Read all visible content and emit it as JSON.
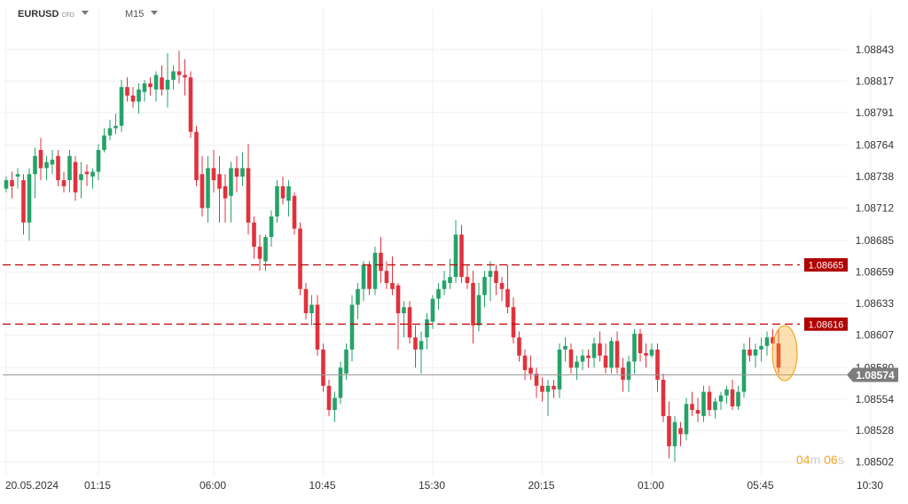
{
  "header": {
    "symbol": "EURUSD",
    "instrument_type": "CFD",
    "timeframe": "M15",
    "symbol_dropdown_icon": "chevron-down-icon",
    "timeframe_dropdown_icon": "chevron-down-icon"
  },
  "countdown": {
    "minutes": "04",
    "minutes_unit": "m",
    "seconds": "06",
    "seconds_unit": "s"
  },
  "colors": {
    "bull": "#26a269",
    "bear": "#e0323c",
    "grid": "#f0f0f0",
    "axis_text": "#333333",
    "level_line": "#c00000",
    "level_label_bg": "#b00000",
    "price_line": "#9a9a9a",
    "price_label_bg": "#7d7d7d",
    "highlight": "#f5a623"
  },
  "chart_data": {
    "type": "candlestick",
    "symbol": "EURUSD",
    "timeframe": "M15",
    "ylim": [
      1.0849,
      1.08862
    ],
    "y_ticks": [
      "1.08843",
      "1.08817",
      "1.08791",
      "1.08764",
      "1.08738",
      "1.08712",
      "1.08685",
      "1.08659",
      "1.08633",
      "1.08607",
      "1.08580",
      "1.08554",
      "1.08528",
      "1.08502"
    ],
    "x_ticks": [
      "20.05.2024",
      "01:15",
      "06:00",
      "10:45",
      "15:30",
      "20:15",
      "01:00",
      "05:45",
      "10:30"
    ],
    "x_tick_index": [
      0,
      16,
      36,
      55,
      74,
      93,
      112,
      131,
      150
    ],
    "x_slot_count": 155,
    "horizontal_levels": [
      {
        "price": 1.08665,
        "label": "1.08665"
      },
      {
        "price": 1.08616,
        "label": "1.08616"
      }
    ],
    "current_price": {
      "price": 1.08574,
      "label": "1.08574"
    },
    "grid": true,
    "candles": [
      [
        1.08728,
        1.08738,
        1.08725,
        1.08735
      ],
      [
        1.08735,
        1.08742,
        1.0872,
        1.0873
      ],
      [
        1.08738,
        1.08745,
        1.08728,
        1.0874
      ],
      [
        1.08735,
        1.0874,
        1.0869,
        1.087
      ],
      [
        1.087,
        1.08745,
        1.08685,
        1.0874
      ],
      [
        1.0874,
        1.08762,
        1.0872,
        1.08755
      ],
      [
        1.0876,
        1.0877,
        1.08735,
        1.08745
      ],
      [
        1.08745,
        1.08755,
        1.08735,
        1.0875
      ],
      [
        1.08748,
        1.0876,
        1.0874,
        1.08752
      ],
      [
        1.08755,
        1.0876,
        1.0873,
        1.08735
      ],
      [
        1.08735,
        1.08742,
        1.08725,
        1.0873
      ],
      [
        1.08735,
        1.0876,
        1.08725,
        1.08755
      ],
      [
        1.0875,
        1.08755,
        1.08718,
        1.08725
      ],
      [
        1.08735,
        1.0875,
        1.0872,
        1.0874
      ],
      [
        1.08742,
        1.08748,
        1.0873,
        1.0874
      ],
      [
        1.08738,
        1.08745,
        1.08728,
        1.08742
      ],
      [
        1.08742,
        1.08765,
        1.08735,
        1.0876
      ],
      [
        1.0876,
        1.08778,
        1.08758,
        1.08772
      ],
      [
        1.08772,
        1.08785,
        1.08768,
        1.08778
      ],
      [
        1.08778,
        1.0879,
        1.08773,
        1.0878
      ],
      [
        1.0878,
        1.08818,
        1.08775,
        1.08812
      ],
      [
        1.08812,
        1.0882,
        1.088,
        1.08805
      ],
      [
        1.08805,
        1.08812,
        1.08795,
        1.088
      ],
      [
        1.088,
        1.08815,
        1.0879,
        1.0881
      ],
      [
        1.08808,
        1.08818,
        1.088,
        1.08815
      ],
      [
        1.08815,
        1.0882,
        1.08805,
        1.08812
      ],
      [
        1.0881,
        1.08825,
        1.088,
        1.08822
      ],
      [
        1.0882,
        1.0883,
        1.08805,
        1.0881
      ],
      [
        1.0881,
        1.0884,
        1.08795,
        1.08818
      ],
      [
        1.08818,
        1.0883,
        1.0881,
        1.08825
      ],
      [
        1.08825,
        1.08842,
        1.08815,
        1.08822
      ],
      [
        1.08822,
        1.08835,
        1.08805,
        1.0882
      ],
      [
        1.0882,
        1.08825,
        1.0877,
        1.08775
      ],
      [
        1.08775,
        1.0878,
        1.0873,
        1.08735
      ],
      [
        1.0874,
        1.08755,
        1.08705,
        1.08712
      ],
      [
        1.08712,
        1.08755,
        1.087,
        1.08745
      ],
      [
        1.08745,
        1.0876,
        1.08725,
        1.08735
      ],
      [
        1.0874,
        1.08755,
        1.087,
        1.08728
      ],
      [
        1.0873,
        1.0874,
        1.087,
        1.0872
      ],
      [
        1.08722,
        1.0875,
        1.087,
        1.08745
      ],
      [
        1.08745,
        1.08755,
        1.08725,
        1.08738
      ],
      [
        1.08738,
        1.08758,
        1.0873,
        1.08745
      ],
      [
        1.08745,
        1.08765,
        1.0869,
        1.087
      ],
      [
        1.087,
        1.08705,
        1.0867,
        1.0868
      ],
      [
        1.0868,
        1.0869,
        1.0866,
        1.0867
      ],
      [
        1.08668,
        1.0869,
        1.0866,
        1.08688
      ],
      [
        1.08688,
        1.0871,
        1.0868,
        1.08705
      ],
      [
        1.08705,
        1.08735,
        1.087,
        1.0873
      ],
      [
        1.0873,
        1.08738,
        1.08715,
        1.0872
      ],
      [
        1.08718,
        1.08735,
        1.08705,
        1.0873
      ],
      [
        1.08722,
        1.08725,
        1.0869,
        1.08695
      ],
      [
        1.08695,
        1.087,
        1.0864,
        1.08645
      ],
      [
        1.08645,
        1.0865,
        1.0862,
        1.08625
      ],
      [
        1.08625,
        1.0864,
        1.08615,
        1.08632
      ],
      [
        1.08632,
        1.0864,
        1.0859,
        1.08595
      ],
      [
        1.08595,
        1.086,
        1.0856,
        1.08565
      ],
      [
        1.08565,
        1.0857,
        1.0854,
        1.08545
      ],
      [
        1.08545,
        1.0856,
        1.08535,
        1.08555
      ],
      [
        1.08555,
        1.08585,
        1.0855,
        1.0858
      ],
      [
        1.08575,
        1.086,
        1.0857,
        1.08595
      ],
      [
        1.08595,
        1.0864,
        1.08585,
        1.08632
      ],
      [
        1.08632,
        1.0865,
        1.0862,
        1.08645
      ],
      [
        1.08645,
        1.08668,
        1.08635,
        1.08665
      ],
      [
        1.08665,
        1.08668,
        1.0864,
        1.08645
      ],
      [
        1.08645,
        1.0868,
        1.0864,
        1.08675
      ],
      [
        1.08675,
        1.08688,
        1.0865,
        1.0866
      ],
      [
        1.0866,
        1.08668,
        1.08645,
        1.0865
      ],
      [
        1.0865,
        1.08672,
        1.0864,
        1.08645
      ],
      [
        1.08648,
        1.0865,
        1.08595,
        1.08625
      ],
      [
        1.08625,
        1.08635,
        1.08605,
        1.0863
      ],
      [
        1.0863,
        1.08635,
        1.086,
        1.08605
      ],
      [
        1.08605,
        1.08615,
        1.0858,
        1.08595
      ],
      [
        1.08595,
        1.0861,
        1.08575,
        1.08602
      ],
      [
        1.08605,
        1.08625,
        1.08595,
        1.0862
      ],
      [
        1.08618,
        1.0864,
        1.08612,
        1.08637
      ],
      [
        1.08637,
        1.0865,
        1.08628,
        1.08645
      ],
      [
        1.08645,
        1.0866,
        1.0864,
        1.08652
      ],
      [
        1.0865,
        1.0867,
        1.08645,
        1.08655
      ],
      [
        1.08655,
        1.08702,
        1.0865,
        1.0869
      ],
      [
        1.0869,
        1.08698,
        1.0865,
        1.08655
      ],
      [
        1.08655,
        1.08665,
        1.08645,
        1.0865
      ],
      [
        1.0865,
        1.0866,
        1.086,
        1.08615
      ],
      [
        1.08615,
        1.0865,
        1.0861,
        1.0864
      ],
      [
        1.0864,
        1.0866,
        1.0863,
        1.08655
      ],
      [
        1.08655,
        1.08668,
        1.08635,
        1.0866
      ],
      [
        1.0866,
        1.08665,
        1.0864,
        1.0865
      ],
      [
        1.0865,
        1.08655,
        1.08635,
        1.08645
      ],
      [
        1.08645,
        1.08665,
        1.08625,
        1.0863
      ],
      [
        1.0863,
        1.08638,
        1.086,
        1.08605
      ],
      [
        1.08605,
        1.0861,
        1.08585,
        1.0859
      ],
      [
        1.0859,
        1.08595,
        1.0857,
        1.08578
      ],
      [
        1.0858,
        1.0859,
        1.0857,
        1.08575
      ],
      [
        1.08575,
        1.0858,
        1.08555,
        1.08565
      ],
      [
        1.08565,
        1.08572,
        1.08552,
        1.0856
      ],
      [
        1.0856,
        1.0857,
        1.0854,
        1.08565
      ],
      [
        1.08565,
        1.0857,
        1.08555,
        1.08562
      ],
      [
        1.08562,
        1.086,
        1.08555,
        1.08595
      ],
      [
        1.08595,
        1.08605,
        1.08585,
        1.08598
      ],
      [
        1.08595,
        1.086,
        1.08575,
        1.0858
      ],
      [
        1.0858,
        1.0859,
        1.0857,
        1.08585
      ],
      [
        1.08585,
        1.08595,
        1.08578,
        1.0859
      ],
      [
        1.0859,
        1.08595,
        1.0858,
        1.08588
      ],
      [
        1.08588,
        1.08605,
        1.0858,
        1.086
      ],
      [
        1.086,
        1.0861,
        1.08585,
        1.0859
      ],
      [
        1.0859,
        1.086,
        1.08575,
        1.0858
      ],
      [
        1.0858,
        1.08605,
        1.08575,
        1.08602
      ],
      [
        1.08602,
        1.0861,
        1.08575,
        1.0858
      ],
      [
        1.0858,
        1.08588,
        1.0856,
        1.0857
      ],
      [
        1.0857,
        1.0859,
        1.0856,
        1.08585
      ],
      [
        1.08585,
        1.08612,
        1.08575,
        1.08608
      ],
      [
        1.08608,
        1.08612,
        1.08585,
        1.08592
      ],
      [
        1.08592,
        1.086,
        1.0858,
        1.0859
      ],
      [
        1.0859,
        1.086,
        1.08588,
        1.08595
      ],
      [
        1.08595,
        1.086,
        1.0856,
        1.0857
      ],
      [
        1.0857,
        1.08575,
        1.08535,
        1.0854
      ],
      [
        1.0854,
        1.08552,
        1.08505,
        1.08515
      ],
      [
        1.08515,
        1.0854,
        1.08502,
        1.08535
      ],
      [
        1.0853,
        1.08535,
        1.08515,
        1.08525
      ],
      [
        1.08525,
        1.08555,
        1.0852,
        1.0855
      ],
      [
        1.0855,
        1.0856,
        1.0854,
        1.08545
      ],
      [
        1.08545,
        1.08555,
        1.08535,
        1.08542
      ],
      [
        1.0854,
        1.08565,
        1.08535,
        1.0856
      ],
      [
        1.0856,
        1.08565,
        1.0854,
        1.08545
      ],
      [
        1.08545,
        1.08555,
        1.08538,
        1.08552
      ],
      [
        1.08552,
        1.0856,
        1.08545,
        1.08557
      ],
      [
        1.08557,
        1.08565,
        1.0855,
        1.08562
      ],
      [
        1.08562,
        1.0857,
        1.08545,
        1.08548
      ],
      [
        1.08548,
        1.08565,
        1.08545,
        1.0856
      ],
      [
        1.0856,
        1.086,
        1.08555,
        1.08595
      ],
      [
        1.08595,
        1.08605,
        1.08585,
        1.0859
      ],
      [
        1.0859,
        1.086,
        1.0858,
        1.08595
      ],
      [
        1.08595,
        1.08605,
        1.08585,
        1.08598
      ],
      [
        1.08598,
        1.0861,
        1.0859,
        1.08605
      ],
      [
        1.08605,
        1.08612,
        1.08595,
        1.086
      ],
      [
        1.086,
        1.08612,
        1.08575,
        1.0858
      ]
    ]
  }
}
